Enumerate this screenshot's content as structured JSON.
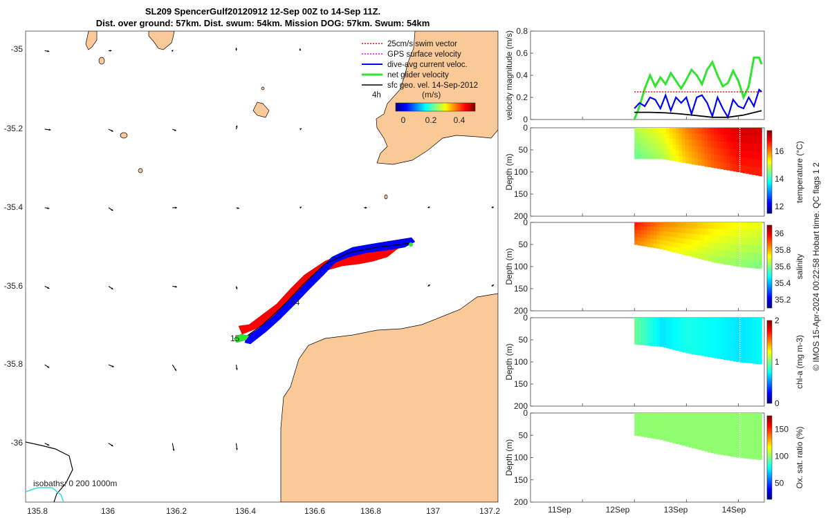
{
  "header": {
    "title_line1": "SL209 SpencerGulf20120912 12-Sep 00Z to 14-Sep 11Z.",
    "title_line2": "Dist. over ground: 57km. Dist. swum: 54km. Mission DOG: 57km. Swum: 54km"
  },
  "colors": {
    "land": "#f9c997",
    "track_red": "#ff0000",
    "track_blue": "#0000ff",
    "net_green": "#2ee62e",
    "black": "#000000",
    "isobath_cyan": "#33dddd"
  },
  "map": {
    "xticks": [
      "135.8",
      "136",
      "136.2",
      "136.4",
      "136.6",
      "136.8",
      "137",
      "137.2"
    ],
    "yticks": [
      "-35",
      "-35.2",
      "-35.4",
      "-35.6",
      "-35.8",
      "-36"
    ],
    "xlim": [
      135.74,
      137.22
    ],
    "ylim": [
      -36.15,
      -34.95
    ],
    "legend": [
      {
        "label": "25cm/s swim vector",
        "color": "#ff0000",
        "style": "dotted"
      },
      {
        "label": "GPS surface velocity",
        "color": "#ff00ff",
        "style": "dotted"
      },
      {
        "label": "dive-avg current veloc.",
        "color": "#0000ff",
        "style": "solid"
      },
      {
        "label": "net glider velocity",
        "color": "#2ee62e",
        "style": "solid"
      },
      {
        "label": "sfc geo. vel. 14-Sep-2012",
        "color": "#000000",
        "style": "solid"
      }
    ],
    "legend_4h": "4h",
    "colorbar_label": "(m/s)",
    "colorbar_ticks": [
      "0",
      "0.2",
      "0.4"
    ],
    "track_labels": [
      "14",
      "15"
    ],
    "isobaths_label": "isobaths: 0 200 1000m",
    "quivers": [
      {
        "lon": 135.8,
        "lat": -35.0,
        "u": 0.3,
        "v": -0.05
      },
      {
        "lon": 136.0,
        "lat": -35.0,
        "u": 0.2,
        "v": 0
      },
      {
        "lon": 136.2,
        "lat": -35.0,
        "u": 0.05,
        "v": 0.05
      },
      {
        "lon": 136.4,
        "lat": -35.0,
        "u": 0,
        "v": 0.2
      },
      {
        "lon": 136.6,
        "lat": -35.0,
        "u": 0,
        "v": 0.15
      },
      {
        "lon": 135.8,
        "lat": -35.2,
        "u": 0.4,
        "v": -0.05
      },
      {
        "lon": 136.0,
        "lat": -35.2,
        "u": 0.3,
        "v": -0.15
      },
      {
        "lon": 136.2,
        "lat": -35.2,
        "u": 0.25,
        "v": -0.1
      },
      {
        "lon": 136.4,
        "lat": -35.2,
        "u": 0.05,
        "v": 0.25
      },
      {
        "lon": 136.6,
        "lat": -35.2,
        "u": 0.1,
        "v": 0.05
      },
      {
        "lon": 135.8,
        "lat": -35.4,
        "u": 0.3,
        "v": -0.05
      },
      {
        "lon": 136.0,
        "lat": -35.4,
        "u": 0.3,
        "v": -0.2
      },
      {
        "lon": 136.2,
        "lat": -35.4,
        "u": 0.3,
        "v": 0
      },
      {
        "lon": 136.4,
        "lat": -35.4,
        "u": 0.2,
        "v": -0.05
      },
      {
        "lon": 136.6,
        "lat": -35.4,
        "u": 0.1,
        "v": 0.05
      },
      {
        "lon": 136.8,
        "lat": -35.4,
        "u": 0.2,
        "v": 0
      },
      {
        "lon": 137.0,
        "lat": -35.4,
        "u": 0.15,
        "v": 0.05
      },
      {
        "lon": 137.2,
        "lat": -35.4,
        "u": 0.15,
        "v": 0.05
      },
      {
        "lon": 135.8,
        "lat": -35.6,
        "u": 0.3,
        "v": -0.15
      },
      {
        "lon": 136.0,
        "lat": -35.6,
        "u": 0.3,
        "v": -0.2
      },
      {
        "lon": 136.2,
        "lat": -35.6,
        "u": 0.3,
        "v": -0.05
      },
      {
        "lon": 136.4,
        "lat": -35.6,
        "u": 0.05,
        "v": -0.2
      },
      {
        "lon": 137.0,
        "lat": -35.6,
        "u": 0.15,
        "v": 0.1
      },
      {
        "lon": 137.2,
        "lat": -35.6,
        "u": 0.15,
        "v": 0.1
      },
      {
        "lon": 135.8,
        "lat": -35.8,
        "u": 0.3,
        "v": -0.2
      },
      {
        "lon": 136.0,
        "lat": -35.8,
        "u": 0.35,
        "v": -0.15
      },
      {
        "lon": 136.2,
        "lat": -35.8,
        "u": 0.25,
        "v": -0.4
      },
      {
        "lon": 136.4,
        "lat": -35.8,
        "u": 0.05,
        "v": -0.35
      },
      {
        "lon": 135.8,
        "lat": -36.0,
        "u": 0.3,
        "v": -0.15
      },
      {
        "lon": 136.0,
        "lat": -36.0,
        "u": 0.3,
        "v": -0.2
      },
      {
        "lon": 136.2,
        "lat": -36.0,
        "u": 0.1,
        "v": -0.5
      },
      {
        "lon": 136.4,
        "lat": -36.0,
        "u": 0.05,
        "v": -0.45
      }
    ]
  },
  "chart_data": [
    {
      "type": "line",
      "title": "",
      "ylabel": "velocity magnitude (m/s)",
      "ylim": [
        0,
        0.8
      ],
      "yticks": [
        "0",
        "0.2",
        "0.4",
        "0.6",
        "0.8"
      ],
      "xlim": [
        10.0,
        14.5
      ],
      "series": [
        {
          "name": "net glider velocity",
          "color": "#2ee62e",
          "x": [
            12.0,
            12.1,
            12.2,
            12.3,
            12.4,
            12.5,
            12.6,
            12.7,
            12.8,
            12.9,
            13.0,
            13.1,
            13.2,
            13.3,
            13.4,
            13.5,
            13.6,
            13.7,
            13.8,
            13.9,
            14.0,
            14.1,
            14.2,
            14.3,
            14.4,
            14.45
          ],
          "values": [
            0.0,
            0.12,
            0.28,
            0.4,
            0.3,
            0.38,
            0.32,
            0.42,
            0.35,
            0.28,
            0.36,
            0.45,
            0.4,
            0.32,
            0.45,
            0.52,
            0.4,
            0.3,
            0.33,
            0.44,
            0.35,
            0.2,
            0.3,
            0.56,
            0.56,
            0.5
          ]
        },
        {
          "name": "dive-avg current veloc.",
          "color": "#0000ff",
          "x": [
            12.0,
            12.1,
            12.2,
            12.3,
            12.4,
            12.5,
            12.6,
            12.7,
            12.8,
            12.9,
            13.0,
            13.1,
            13.2,
            13.3,
            13.4,
            13.5,
            13.6,
            13.7,
            13.8,
            13.9,
            14.0,
            14.1,
            14.2,
            14.3,
            14.4,
            14.45
          ],
          "values": [
            0.1,
            0.15,
            0.12,
            0.2,
            0.18,
            0.1,
            0.22,
            0.08,
            0.2,
            0.15,
            0.2,
            0.05,
            0.2,
            0.22,
            0.15,
            0.03,
            0.2,
            0.1,
            0.02,
            0.18,
            0.12,
            0.1,
            0.2,
            0.12,
            0.27,
            0.25
          ]
        },
        {
          "name": "25cm/s swim vector",
          "color": "#ff0000",
          "x": [
            12.0,
            12.2,
            12.4,
            12.6,
            12.8,
            13.0,
            13.2,
            13.4,
            13.6,
            13.8,
            14.0,
            14.2,
            14.45
          ],
          "values": [
            0.25,
            0.25,
            0.25,
            0.25,
            0.25,
            0.25,
            0.25,
            0.25,
            0.25,
            0.25,
            0.25,
            0.25,
            0.25
          ]
        },
        {
          "name": "sfc geo. vel.",
          "color": "#000000",
          "x": [
            12.0,
            12.3,
            12.6,
            12.9,
            13.2,
            13.5,
            13.8,
            14.1,
            14.45
          ],
          "values": [
            0.065,
            0.065,
            0.06,
            0.05,
            0.035,
            0.02,
            0.02,
            0.04,
            0.08
          ]
        }
      ]
    },
    {
      "type": "heatmap",
      "ylabel": "Depth (m)",
      "clabel": "temperature (°C)",
      "ylim": [
        0,
        200
      ],
      "yticks": [
        "0",
        "50",
        "100",
        "150",
        "200"
      ],
      "cticks": [
        "12",
        "14",
        "16"
      ],
      "crange": [
        11.5,
        17.5
      ],
      "x": [
        12.0,
        12.5,
        13.0,
        13.5,
        14.0,
        14.45
      ],
      "max_depth": [
        70,
        70,
        80,
        90,
        100,
        110
      ],
      "values": [
        14.8,
        15.2,
        16.0,
        16.6,
        17.0,
        17.0
      ]
    },
    {
      "type": "heatmap",
      "ylabel": "Depth (m)",
      "clabel": "salinity",
      "ylim": [
        0,
        200
      ],
      "yticks": [
        "0",
        "50",
        "100",
        "150",
        "200"
      ],
      "cticks": [
        "35.2",
        "35.4",
        "35.6",
        "35.8",
        "36"
      ],
      "crange": [
        35.1,
        36.1
      ],
      "x": [
        12.0,
        12.5,
        13.0,
        13.5,
        14.0,
        14.45
      ],
      "max_depth": [
        50,
        60,
        75,
        90,
        100,
        105
      ],
      "values": [
        35.95,
        35.85,
        35.8,
        35.75,
        35.72,
        35.7
      ]
    },
    {
      "type": "heatmap",
      "ylabel": "Depth (m)",
      "clabel": "chl-a (mg m-3)",
      "ylim": [
        0,
        200
      ],
      "yticks": [
        "0",
        "50",
        "100",
        "150",
        "200"
      ],
      "cticks": [
        "0",
        "1",
        "2"
      ],
      "crange": [
        0,
        2
      ],
      "x": [
        12.0,
        12.5,
        13.0,
        13.5,
        14.0,
        14.45
      ],
      "max_depth": [
        60,
        65,
        80,
        90,
        100,
        105
      ],
      "values": [
        0.95,
        0.7,
        0.8,
        0.75,
        0.7,
        0.75
      ]
    },
    {
      "type": "heatmap",
      "ylabel": "Depth (m)",
      "clabel": "Ox. sat. ratio (%)",
      "ylim": [
        0,
        200
      ],
      "yticks": [
        "0",
        "50",
        "100",
        "150",
        "200"
      ],
      "cticks": [
        "50",
        "100",
        "150"
      ],
      "crange": [
        20,
        175
      ],
      "x": [
        12.0,
        12.5,
        13.0,
        13.5,
        14.0,
        14.45
      ],
      "max_depth": [
        50,
        60,
        75,
        90,
        100,
        105
      ],
      "values": [
        100,
        100,
        100,
        100,
        100,
        100
      ]
    }
  ],
  "time_axis": {
    "ticks": [
      "11Sep",
      "12Sep",
      "13Sep",
      "14Sep"
    ],
    "tick_values": [
      11,
      12,
      13,
      14
    ]
  },
  "footer": {
    "imos_credit": "© IMOS 15-Apr-2024 00:22:58 Hobart time. QC flags 1  2"
  }
}
